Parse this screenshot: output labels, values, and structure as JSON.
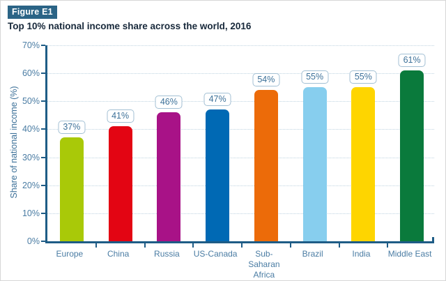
{
  "header": {
    "figure_label": "Figure E1"
  },
  "chart_data": {
    "type": "bar",
    "title": "Top 10% national income share across the world, 2016",
    "categories": [
      "Europe",
      "China",
      "Russia",
      "US-Canada",
      "Sub-Saharan Africa",
      "Brazil",
      "India",
      "Middle East"
    ],
    "x_display": [
      "Europe",
      "China",
      "Russia",
      "US-Canada",
      "Sub-\nSaharan\nAfrica",
      "Brazil",
      "India",
      "Middle East"
    ],
    "values": [
      37,
      41,
      46,
      47,
      54,
      55,
      55,
      61
    ],
    "value_labels": [
      "37%",
      "41%",
      "46%",
      "47%",
      "54%",
      "55%",
      "55%",
      "61%"
    ],
    "bar_colors": [
      "#a9c908",
      "#e30513",
      "#a81287",
      "#0069b4",
      "#ec6b09",
      "#87ceee",
      "#fed500",
      "#0a7a3c"
    ],
    "xlabel": "",
    "ylabel": "Share of national income (%)",
    "ylim": [
      0,
      70
    ],
    "yticks": [
      "0%",
      "10%",
      "20%",
      "30%",
      "40%",
      "50%",
      "60%",
      "70%"
    ],
    "grid": "horizontal-dotted",
    "legend": "none"
  },
  "colors": {
    "badge_bg": "#2b6486",
    "badge_text": "#ffffff",
    "title_text": "#17283a",
    "axis_line": "#1e5c86",
    "tick_text": "#4a7ca3",
    "gridline": "#bed3e1",
    "value_box_border": "#a3c0d4",
    "value_box_text": "#3d7199",
    "background": "#ffffff"
  }
}
